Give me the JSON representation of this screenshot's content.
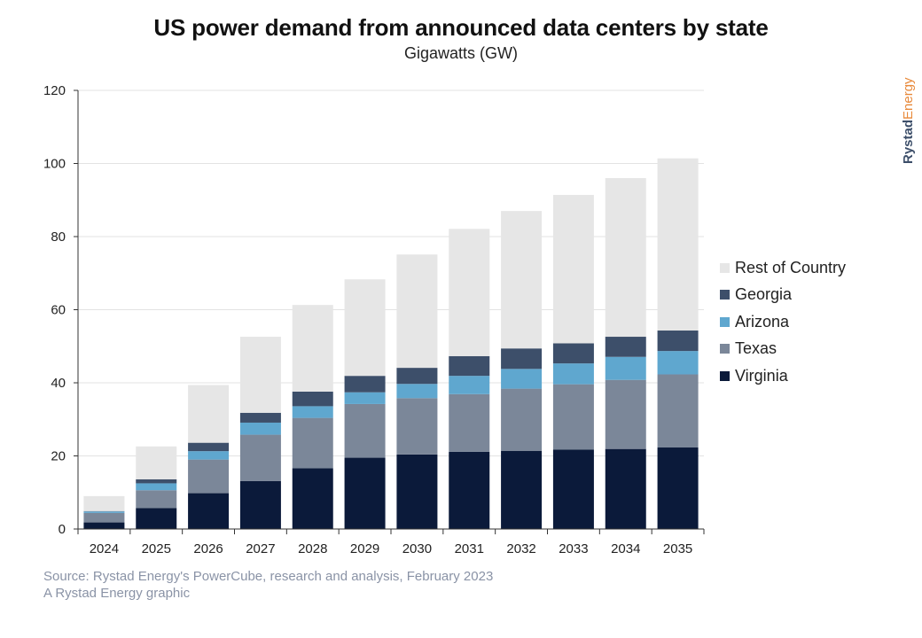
{
  "chart_data": {
    "type": "bar",
    "stacked": true,
    "title": "US power demand from announced data centers by state",
    "subtitle": "Gigawatts (GW)",
    "xlabel": "",
    "ylabel": "",
    "ylim": [
      0,
      120
    ],
    "yticks": [
      0,
      20,
      40,
      60,
      80,
      100,
      120
    ],
    "grid": true,
    "legend_position": "right",
    "categories": [
      "2024",
      "2025",
      "2026",
      "2027",
      "2028",
      "2029",
      "2030",
      "2031",
      "2032",
      "2033",
      "2034",
      "2035"
    ],
    "series": [
      {
        "name": "Virginia",
        "color": "#0b1a3a",
        "values": [
          1.8,
          5.7,
          9.8,
          13.1,
          16.6,
          19.5,
          20.4,
          21.1,
          21.4,
          21.7,
          21.9,
          22.3
        ]
      },
      {
        "name": "Texas",
        "color": "#7b8799",
        "values": [
          2.6,
          4.9,
          9.2,
          12.7,
          13.8,
          14.7,
          15.4,
          15.8,
          17.0,
          17.9,
          18.9,
          20.0
        ]
      },
      {
        "name": "Arizona",
        "color": "#5fa7cf",
        "values": [
          0.4,
          1.9,
          2.3,
          3.3,
          3.2,
          3.2,
          3.9,
          5.0,
          5.4,
          5.7,
          6.3,
          6.4
        ]
      },
      {
        "name": "Georgia",
        "color": "#3d4f6a",
        "values": [
          0.1,
          1.1,
          2.3,
          2.7,
          4.0,
          4.5,
          4.4,
          5.4,
          5.6,
          5.5,
          5.5,
          5.6
        ]
      },
      {
        "name": "Rest of Country",
        "color": "#e6e6e6",
        "values": [
          4.1,
          9.0,
          15.8,
          20.8,
          23.7,
          26.4,
          31.0,
          34.8,
          37.6,
          40.6,
          43.4,
          47.1
        ]
      }
    ],
    "legend_order": [
      "Rest of Country",
      "Georgia",
      "Arizona",
      "Texas",
      "Virginia"
    ]
  },
  "footer": {
    "source": "Source: Rystad Energy's PowerCube, research and analysis, February 2023",
    "credit": "A Rystad Energy graphic"
  },
  "brand": {
    "part1": "Rystad",
    "part2": "Energy",
    "color1": "#3d4f6a",
    "color2": "#e8893a"
  }
}
